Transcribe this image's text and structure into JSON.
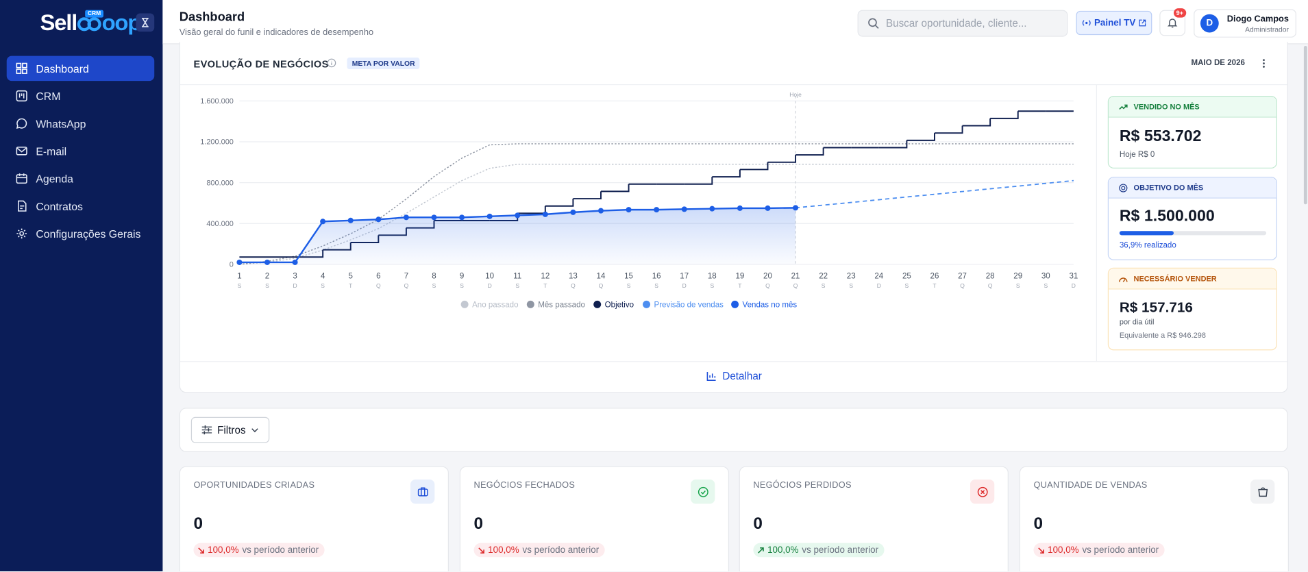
{
  "sidebar": {
    "brand": [
      "Sell",
      "oop"
    ],
    "brand_badge": "CRM",
    "nav": [
      "Dashboard",
      "CRM",
      "WhatsApp",
      "E-mail",
      "Agenda",
      "Contratos",
      "Configurações Gerais"
    ]
  },
  "header": {
    "title": "Dashboard",
    "subtitle": "Visão geral do funil e indicadores de desempenho",
    "search_placeholder": "Buscar oportunidade, cliente...",
    "tv_button": "Painel TV",
    "notifications": "9+",
    "user": {
      "initial": "D",
      "name": "Diogo Campos",
      "role": "Administrador"
    }
  },
  "chart_card": {
    "title": "EVOLUÇÃO DE NEGÓCIOS",
    "badge": "META POR VALOR",
    "period": "MAIO DE 2026",
    "footer_button": "Detalhar"
  },
  "chart_data": {
    "type": "line",
    "categories": [
      "1",
      "2",
      "3",
      "4",
      "5",
      "6",
      "7",
      "8",
      "9",
      "10",
      "11",
      "12",
      "13",
      "14",
      "15",
      "16",
      "17",
      "18",
      "19",
      "20",
      "21",
      "22",
      "23",
      "24",
      "25",
      "26",
      "27",
      "28",
      "29",
      "30",
      "31"
    ],
    "weekdays": [
      "S",
      "S",
      "D",
      "S",
      "T",
      "Q",
      "Q",
      "S",
      "S",
      "D",
      "S",
      "T",
      "Q",
      "Q",
      "S",
      "S",
      "D",
      "S",
      "T",
      "Q",
      "Q",
      "S",
      "S",
      "D",
      "S",
      "T",
      "Q",
      "Q",
      "S",
      "S",
      "D"
    ],
    "ylim": [
      0,
      1600000
    ],
    "yticks": [
      0,
      {
        "value": 400000,
        "label": "400.000"
      },
      {
        "value": 800000,
        "label": "800.000"
      },
      {
        "value": 1200000,
        "label": "1.200.000"
      },
      {
        "value": 1600000,
        "label": "1.600.000"
      }
    ],
    "grid": true,
    "annotation": {
      "text": "Hoje",
      "category": "21"
    },
    "series": [
      {
        "name": "Ano passado",
        "color": "#c3c8d1",
        "style": "dotted",
        "values": [
          0,
          20000,
          60000,
          140000,
          240000,
          350000,
          500000,
          660000,
          820000,
          940000,
          980000,
          980000,
          980000,
          980000,
          980000,
          980000,
          980000,
          980000,
          980000,
          980000,
          980000,
          980000,
          980000,
          980000,
          980000,
          980000,
          980000,
          980000,
          980000,
          980000,
          980000
        ]
      },
      {
        "name": "Mês passado",
        "color": "#8f96a3",
        "style": "dotted",
        "values": [
          0,
          30000,
          80000,
          180000,
          300000,
          440000,
          640000,
          860000,
          1040000,
          1170000,
          1180000,
          1180000,
          1180000,
          1180000,
          1180000,
          1180000,
          1180000,
          1180000,
          1180000,
          1180000,
          1180000,
          1180000,
          1180000,
          1180000,
          1180000,
          1180000,
          1180000,
          1180000,
          1180000,
          1180000,
          1180000
        ]
      },
      {
        "name": "Objetivo",
        "color": "#0f1f4f",
        "style": "step",
        "values": [
          71429,
          71429,
          71429,
          142857,
          214286,
          285714,
          357143,
          428571,
          428571,
          428571,
          500000,
          571429,
          642857,
          714286,
          785714,
          785714,
          785714,
          857143,
          928571,
          1000000,
          1071429,
          1142857,
          1142857,
          1142857,
          1214286,
          1285714,
          1357143,
          1428571,
          1500000,
          1500000,
          1500000
        ]
      },
      {
        "name": "Previsão de vendas",
        "color": "#4d8ef0",
        "style": "dashed",
        "values": [
          null,
          null,
          null,
          null,
          null,
          null,
          null,
          null,
          null,
          null,
          null,
          null,
          null,
          null,
          null,
          null,
          null,
          null,
          null,
          null,
          553702,
          580000,
          606000,
          633000,
          660000,
          686000,
          713000,
          740000,
          766000,
          793000,
          820000
        ]
      },
      {
        "name": "Vendas no mês",
        "color": "#1d5ee6",
        "style": "markers",
        "values": [
          20000,
          20000,
          20000,
          420000,
          430000,
          440000,
          460000,
          460000,
          460000,
          470000,
          480000,
          490000,
          510000,
          525000,
          535000,
          535000,
          540000,
          545000,
          550000,
          550000,
          553702,
          null,
          null,
          null,
          null,
          null,
          null,
          null,
          null,
          null,
          null
        ]
      }
    ]
  },
  "kpis": [
    {
      "title": "VENDIDO NO MÊS",
      "value": "R$ 553.702",
      "note": "Hoje R$ 0"
    },
    {
      "title": "OBJETIVO DO MÊS",
      "value": "R$ 1.500.000",
      "progress": 36.9,
      "progress_label": "36,9% realizado"
    },
    {
      "title": "NECESSÁRIO VENDER",
      "value": "R$ 157.716",
      "note": "por dia útil",
      "subnote": "Equivalente a R$ 946.298"
    }
  ],
  "filters": {
    "button": "Filtros"
  },
  "stat_cards": [
    {
      "title": "OPORTUNIDADES CRIADAS",
      "value": "0",
      "change": "100,0%",
      "change_note": "vs período anterior",
      "trend": "down"
    },
    {
      "title": "NEGÓCIOS FECHADOS",
      "value": "0",
      "change": "100,0%",
      "change_note": "vs período anterior",
      "trend": "down"
    },
    {
      "title": "NEGÓCIOS PERDIDOS",
      "value": "0",
      "change": "100,0%",
      "change_note": "vs período anterior",
      "trend": "up"
    },
    {
      "title": "QUANTIDADE DE VENDAS",
      "value": "0",
      "change": "100,0%",
      "change_note": "vs período anterior",
      "trend": "down"
    }
  ]
}
